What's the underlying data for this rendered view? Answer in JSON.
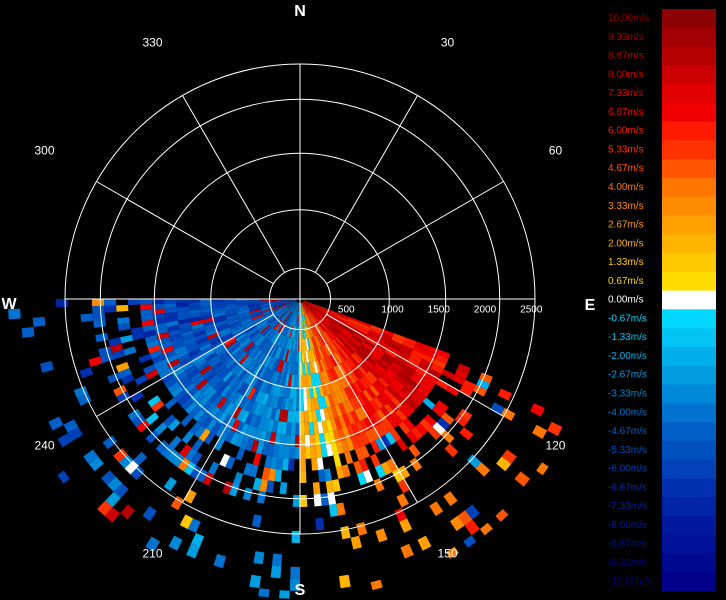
{
  "chart_data": {
    "type": "heatmap",
    "subtype": "polar-radar-velocity",
    "compass": {
      "north": "N",
      "east": "E",
      "south": "S",
      "west": "W"
    },
    "azimuth_labels": [
      "30",
      "60",
      "120",
      "150",
      "210",
      "240",
      "300",
      "330"
    ],
    "azimuth_label_angles": [
      30,
      60,
      120,
      150,
      210,
      240,
      300,
      330
    ],
    "range_ticks": [
      "500",
      "1000",
      "1500",
      "2000",
      "2500"
    ],
    "range_tick_values": [
      500,
      1000,
      1500,
      2000,
      2500
    ],
    "rmax": 2540,
    "spoke_angles_deg": [
      0,
      30,
      60,
      90,
      120,
      150,
      180,
      210,
      240,
      270,
      300,
      330
    ],
    "data_sector_deg": [
      110,
      270
    ],
    "colorbar": {
      "labels": [
        "10.00m/s",
        "9.33m/s",
        "8.67m/s",
        "8.00m/s",
        "7.33m/s",
        "6.67m/s",
        "6.00m/s",
        "5.33m/s",
        "4.67m/s",
        "4.00m/s",
        "3.33m/s",
        "2.67m/s",
        "2.00m/s",
        "1.33m/s",
        "0.67m/s",
        "0.00m/s",
        "-0.67m/s",
        "-1.33m/s",
        "-2.00m/s",
        "-2.67m/s",
        "-3.33m/s",
        "-4.00m/s",
        "-4.67m/s",
        "-5.33m/s",
        "-6.00m/s",
        "-6.67m/s",
        "-7.33m/s",
        "-8.00m/s",
        "-8.67m/s",
        "-9.33m/s",
        "-10.00m/s"
      ],
      "values": [
        10,
        9.33,
        8.67,
        8,
        7.33,
        6.67,
        6,
        5.33,
        4.67,
        4,
        3.33,
        2.67,
        2,
        1.33,
        0.67,
        0,
        -0.67,
        -1.33,
        -2,
        -2.67,
        -3.33,
        -4,
        -4.67,
        -5.33,
        -6,
        -6.67,
        -7.33,
        -8,
        -8.67,
        -9.33,
        -10
      ],
      "colors": [
        "#8b0000",
        "#a00000",
        "#b50000",
        "#cc0000",
        "#e00000",
        "#f00000",
        "#ff1a00",
        "#ff3300",
        "#ff5500",
        "#ff7700",
        "#ff8c00",
        "#ffa000",
        "#ffb400",
        "#ffc800",
        "#ffdc00",
        "#ffffff",
        "#00d8ff",
        "#00c4f4",
        "#00b0ea",
        "#009ce0",
        "#0088d8",
        "#0074d0",
        "#0060c8",
        "#0050c0",
        "#0040b8",
        "#0030b0",
        "#0024a8",
        "#0018a0",
        "#001098",
        "#000890",
        "#000088"
      ]
    }
  }
}
